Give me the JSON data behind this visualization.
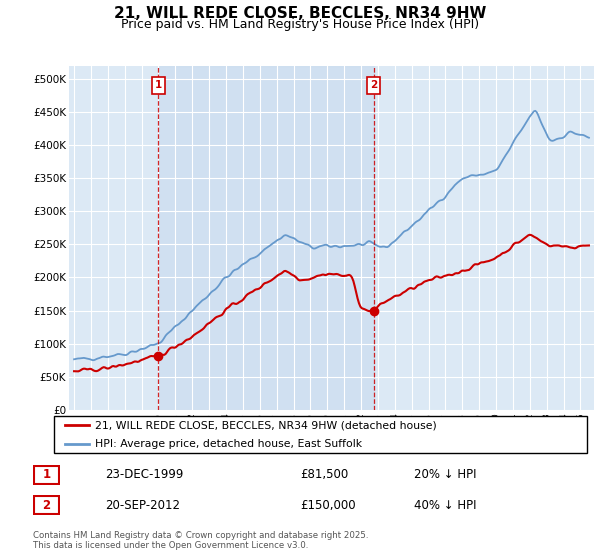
{
  "title": "21, WILL REDE CLOSE, BECCLES, NR34 9HW",
  "subtitle": "Price paid vs. HM Land Registry's House Price Index (HPI)",
  "title_fontsize": 11,
  "subtitle_fontsize": 9,
  "background_color": "#ffffff",
  "plot_bg_color": "#dce9f5",
  "grid_color": "#ffffff",
  "red_color": "#cc0000",
  "blue_color": "#6699cc",
  "legend_label_red": "21, WILL REDE CLOSE, BECCLES, NR34 9HW (detached house)",
  "legend_label_blue": "HPI: Average price, detached house, East Suffolk",
  "sale1_date": "23-DEC-1999",
  "sale1_price": "£81,500",
  "sale1_hpi": "20% ↓ HPI",
  "sale2_date": "20-SEP-2012",
  "sale2_price": "£150,000",
  "sale2_hpi": "40% ↓ HPI",
  "footer": "Contains HM Land Registry data © Crown copyright and database right 2025.\nThis data is licensed under the Open Government Licence v3.0.",
  "ylim": [
    0,
    520000
  ],
  "yticks": [
    0,
    50000,
    100000,
    150000,
    200000,
    250000,
    300000,
    350000,
    400000,
    450000,
    500000
  ],
  "sale1_x": 2000.0,
  "sale1_y": 81500,
  "sale2_x": 2012.75,
  "sale2_y": 150000,
  "xlim_left": 1994.7,
  "xlim_right": 2025.8
}
